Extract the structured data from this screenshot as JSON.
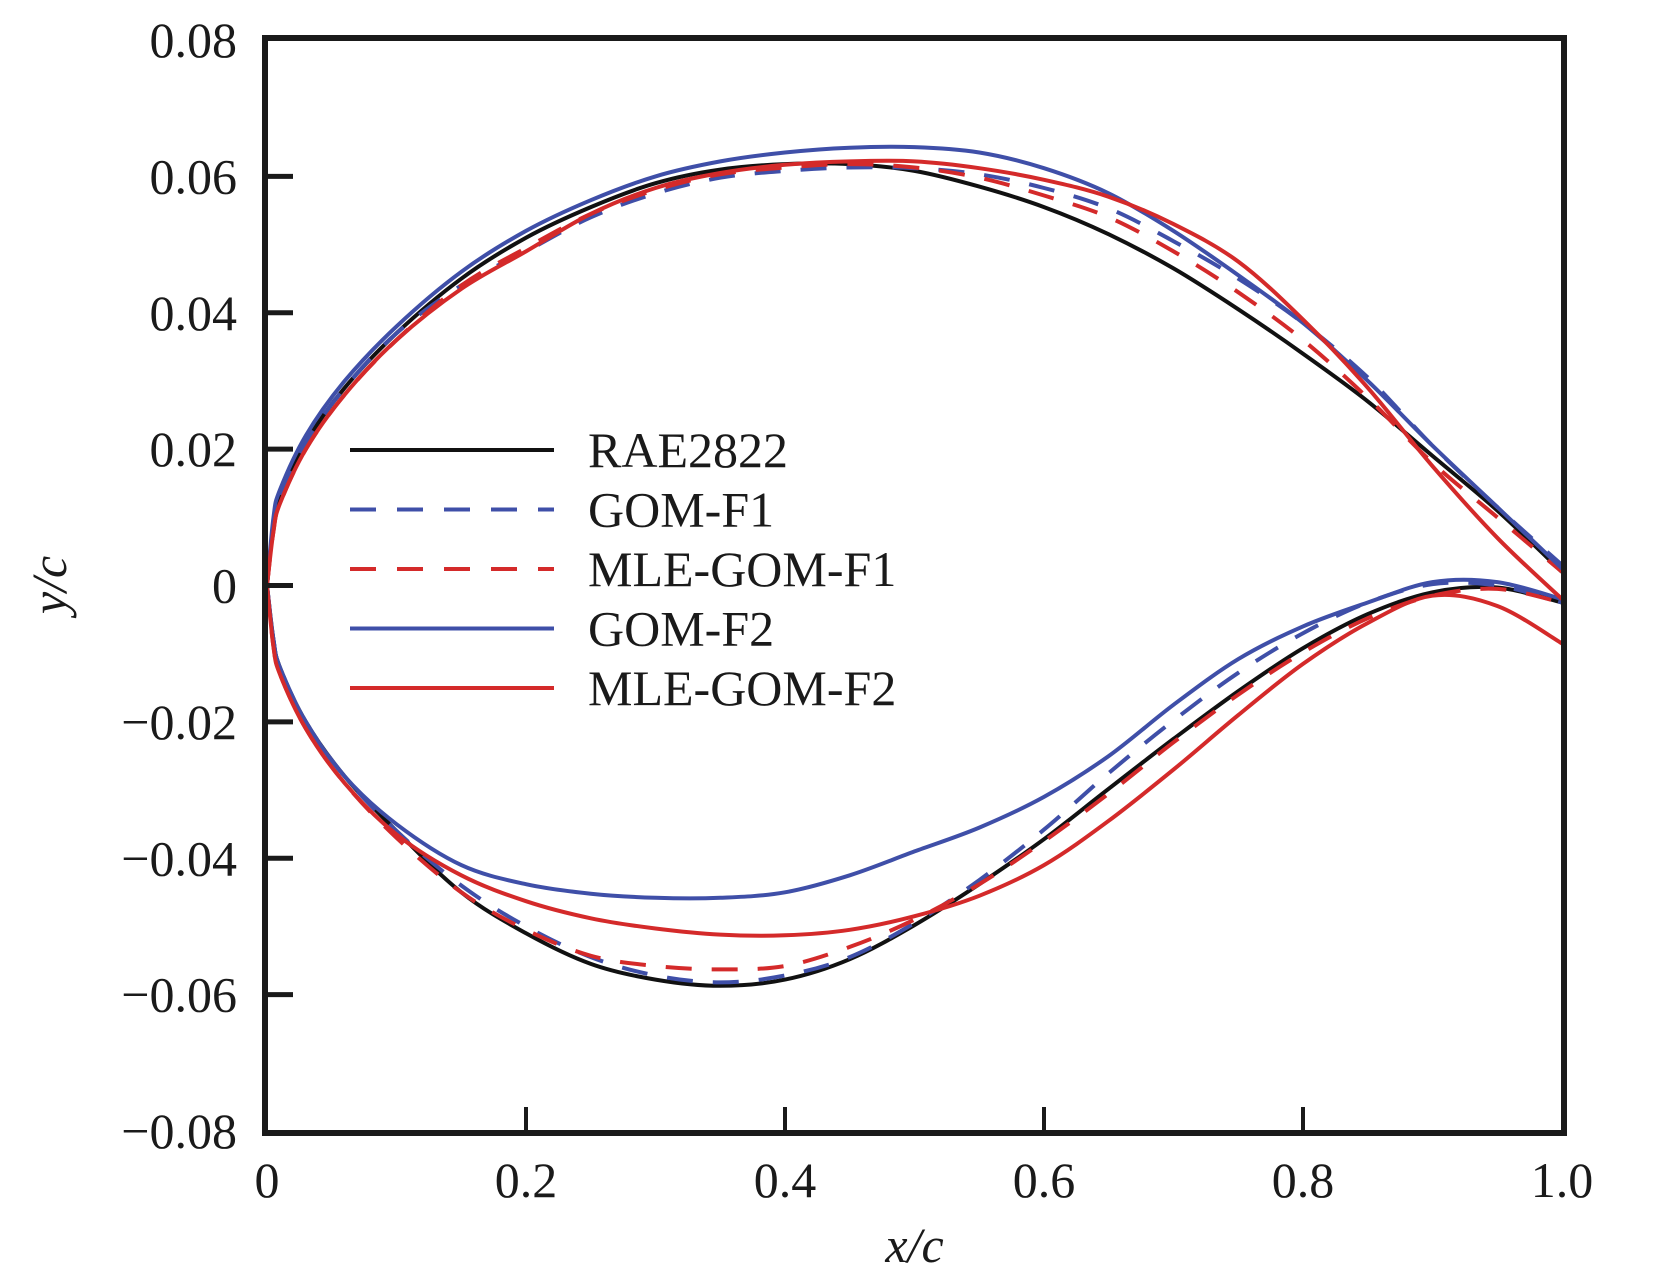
{
  "chart_data": {
    "type": "line",
    "title": "",
    "xlabel": "x/c",
    "ylabel": "y/c",
    "xlim": [
      0,
      1.0
    ],
    "ylim": [
      -0.08,
      0.08
    ],
    "grid": false,
    "legend_position": "center-left",
    "x_ticks": [
      0,
      0.2,
      0.4,
      0.6,
      0.8,
      1.0
    ],
    "x_tick_labels": [
      "0",
      "0.2",
      "0.4",
      "0.6",
      "0.8",
      "1.0"
    ],
    "y_ticks": [
      0.08,
      0.06,
      0.04,
      0.02,
      0,
      -0.02,
      -0.04,
      -0.06,
      -0.08
    ],
    "y_tick_labels": [
      "0.08",
      "0.06",
      "0.04",
      "0.02",
      "0",
      "−0.02",
      "−0.04",
      "−0.06",
      "−0.08"
    ],
    "series": [
      {
        "name": "RAE2822",
        "color": "#111111",
        "dash": "solid",
        "upper": {
          "x": [
            0,
            0.005,
            0.01,
            0.03,
            0.06,
            0.1,
            0.15,
            0.2,
            0.25,
            0.3,
            0.35,
            0.4,
            0.45,
            0.5,
            0.55,
            0.6,
            0.65,
            0.7,
            0.75,
            0.8,
            0.85,
            0.9,
            0.95,
            1.0
          ],
          "y": [
            0,
            0.009,
            0.013,
            0.021,
            0.029,
            0.037,
            0.045,
            0.051,
            0.0555,
            0.059,
            0.061,
            0.0618,
            0.0618,
            0.0608,
            0.0585,
            0.0555,
            0.0515,
            0.0465,
            0.0405,
            0.034,
            0.027,
            0.019,
            0.011,
            0.002
          ]
        },
        "lower": {
          "x": [
            0,
            0.005,
            0.01,
            0.03,
            0.06,
            0.1,
            0.15,
            0.2,
            0.25,
            0.3,
            0.35,
            0.4,
            0.45,
            0.5,
            0.55,
            0.6,
            0.65,
            0.7,
            0.75,
            0.8,
            0.85,
            0.9,
            0.95,
            1.0
          ],
          "y": [
            0,
            -0.008,
            -0.012,
            -0.02,
            -0.028,
            -0.036,
            -0.045,
            -0.051,
            -0.0555,
            -0.0578,
            -0.0587,
            -0.0578,
            -0.0548,
            -0.0498,
            -0.0438,
            -0.0372,
            -0.0298,
            -0.0225,
            -0.0155,
            -0.0092,
            -0.0042,
            -0.001,
            -0.0003,
            -0.0025
          ]
        }
      },
      {
        "name": "GOM-F1",
        "color": "#3f4fa8",
        "dash": "dashed",
        "upper": {
          "x": [
            0,
            0.005,
            0.01,
            0.03,
            0.06,
            0.1,
            0.15,
            0.2,
            0.25,
            0.3,
            0.35,
            0.4,
            0.45,
            0.5,
            0.55,
            0.6,
            0.65,
            0.7,
            0.75,
            0.8,
            0.85,
            0.9,
            0.95,
            1.0
          ],
          "y": [
            0,
            0.009,
            0.013,
            0.021,
            0.029,
            0.037,
            0.044,
            0.049,
            0.054,
            0.0575,
            0.0598,
            0.0608,
            0.0613,
            0.0612,
            0.0603,
            0.0583,
            0.0553,
            0.0505,
            0.045,
            0.0385,
            0.0305,
            0.0205,
            0.0115,
            0.003
          ]
        },
        "lower": {
          "x": [
            0,
            0.005,
            0.01,
            0.03,
            0.06,
            0.1,
            0.15,
            0.2,
            0.25,
            0.3,
            0.35,
            0.4,
            0.45,
            0.5,
            0.55,
            0.6,
            0.65,
            0.7,
            0.75,
            0.8,
            0.85,
            0.9,
            0.95,
            1.0
          ],
          "y": [
            0,
            -0.008,
            -0.012,
            -0.02,
            -0.028,
            -0.036,
            -0.044,
            -0.05,
            -0.0545,
            -0.0572,
            -0.0582,
            -0.0572,
            -0.0545,
            -0.0495,
            -0.0432,
            -0.0358,
            -0.0275,
            -0.0198,
            -0.0128,
            -0.007,
            -0.0025,
            0.0002,
            0.0,
            -0.0025
          ]
        }
      },
      {
        "name": "MLE-GOM-F1",
        "color": "#d42a2a",
        "dash": "dashed",
        "upper": {
          "x": [
            0,
            0.005,
            0.01,
            0.03,
            0.06,
            0.1,
            0.15,
            0.2,
            0.25,
            0.3,
            0.35,
            0.4,
            0.45,
            0.5,
            0.55,
            0.6,
            0.65,
            0.7,
            0.75,
            0.8,
            0.85,
            0.9,
            0.95,
            1.0
          ],
          "y": [
            0,
            0.008,
            0.012,
            0.02,
            0.028,
            0.036,
            0.044,
            0.0495,
            0.0545,
            0.058,
            0.0603,
            0.0613,
            0.0618,
            0.0613,
            0.0598,
            0.0572,
            0.054,
            0.049,
            0.043,
            0.036,
            0.0275,
            0.018,
            0.01,
            0.002
          ]
        },
        "lower": {
          "x": [
            0,
            0.005,
            0.01,
            0.03,
            0.06,
            0.1,
            0.15,
            0.2,
            0.25,
            0.3,
            0.35,
            0.4,
            0.45,
            0.5,
            0.55,
            0.6,
            0.65,
            0.7,
            0.75,
            0.8,
            0.85,
            0.9,
            0.95,
            1.0
          ],
          "y": [
            0,
            -0.009,
            -0.013,
            -0.021,
            -0.029,
            -0.037,
            -0.045,
            -0.0505,
            -0.0543,
            -0.0558,
            -0.0563,
            -0.0558,
            -0.053,
            -0.049,
            -0.0438,
            -0.0375,
            -0.0305,
            -0.023,
            -0.016,
            -0.0098,
            -0.0048,
            -0.0015,
            -0.0005,
            -0.0025
          ]
        }
      },
      {
        "name": "GOM-F2",
        "color": "#3f4fa8",
        "dash": "solid",
        "upper": {
          "x": [
            0,
            0.005,
            0.01,
            0.03,
            0.06,
            0.1,
            0.15,
            0.2,
            0.25,
            0.3,
            0.35,
            0.4,
            0.45,
            0.5,
            0.55,
            0.6,
            0.65,
            0.7,
            0.75,
            0.8,
            0.85,
            0.9,
            0.95,
            1.0
          ],
          "y": [
            0,
            0.01,
            0.014,
            0.022,
            0.03,
            0.038,
            0.046,
            0.052,
            0.0565,
            0.06,
            0.0622,
            0.0635,
            0.0642,
            0.0643,
            0.0635,
            0.0612,
            0.0575,
            0.052,
            0.0455,
            0.0385,
            0.03,
            0.0205,
            0.0115,
            0.0025
          ]
        },
        "lower": {
          "x": [
            0,
            0.005,
            0.01,
            0.03,
            0.06,
            0.1,
            0.15,
            0.2,
            0.25,
            0.3,
            0.35,
            0.4,
            0.45,
            0.5,
            0.55,
            0.6,
            0.65,
            0.7,
            0.75,
            0.8,
            0.85,
            0.9,
            0.95,
            1.0
          ],
          "y": [
            0,
            -0.008,
            -0.012,
            -0.02,
            -0.028,
            -0.035,
            -0.041,
            -0.0438,
            -0.0452,
            -0.0458,
            -0.0458,
            -0.045,
            -0.0425,
            -0.039,
            -0.0355,
            -0.031,
            -0.025,
            -0.0175,
            -0.0108,
            -0.006,
            -0.0025,
            0.0005,
            0.0005,
            -0.002
          ]
        }
      },
      {
        "name": "MLE-GOM-F2",
        "color": "#d42a2a",
        "dash": "solid",
        "upper": {
          "x": [
            0,
            0.005,
            0.01,
            0.03,
            0.06,
            0.1,
            0.15,
            0.2,
            0.25,
            0.3,
            0.35,
            0.4,
            0.45,
            0.5,
            0.55,
            0.6,
            0.65,
            0.7,
            0.75,
            0.8,
            0.85,
            0.9,
            0.95,
            1.0
          ],
          "y": [
            0,
            0.008,
            0.012,
            0.02,
            0.028,
            0.036,
            0.0435,
            0.049,
            0.0545,
            0.0583,
            0.0605,
            0.0617,
            0.0622,
            0.0622,
            0.0612,
            0.0595,
            0.057,
            0.053,
            0.0475,
            0.039,
            0.029,
            0.0175,
            0.007,
            -0.002
          ]
        },
        "lower": {
          "x": [
            0,
            0.005,
            0.01,
            0.03,
            0.06,
            0.1,
            0.15,
            0.2,
            0.25,
            0.3,
            0.35,
            0.4,
            0.45,
            0.5,
            0.55,
            0.6,
            0.65,
            0.7,
            0.75,
            0.8,
            0.85,
            0.9,
            0.95,
            1.0
          ],
          "y": [
            0,
            -0.009,
            -0.013,
            -0.021,
            -0.029,
            -0.0365,
            -0.0425,
            -0.0463,
            -0.0488,
            -0.0503,
            -0.0512,
            -0.0513,
            -0.0505,
            -0.0485,
            -0.0455,
            -0.041,
            -0.0345,
            -0.027,
            -0.019,
            -0.0115,
            -0.0055,
            -0.0015,
            -0.003,
            -0.0085
          ]
        }
      }
    ]
  }
}
